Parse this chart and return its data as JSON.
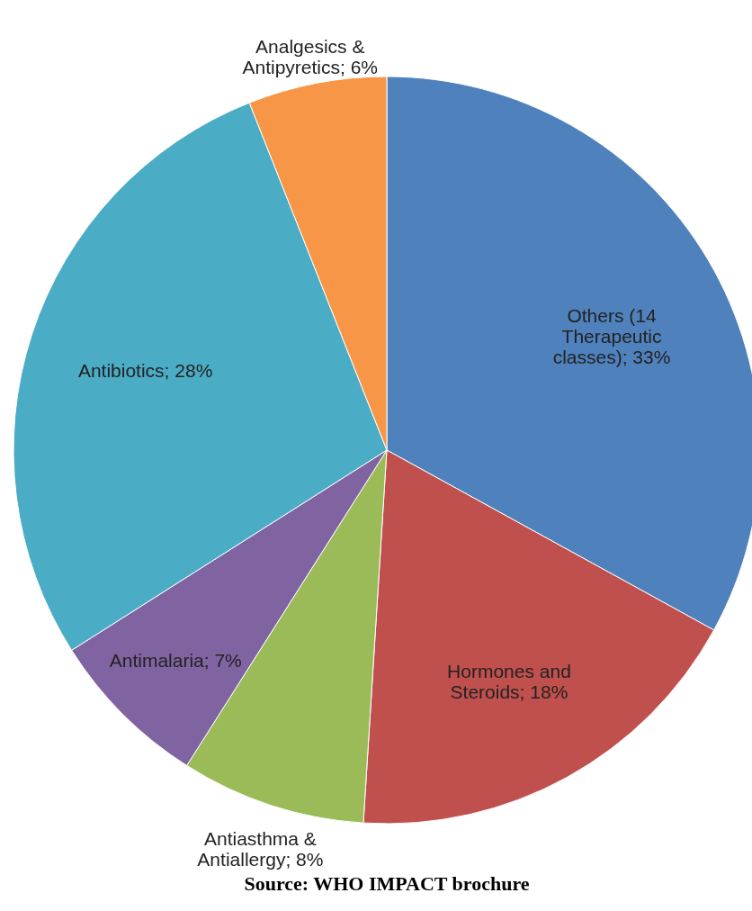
{
  "chart_data": {
    "type": "pie",
    "categories": [
      "Others (14 Therapeutic classes)",
      "Hormones and Steroids",
      "Antiasthma & Antiallergy",
      "Antimalaria",
      "Antibiotics",
      "Analgesics & Antipyretics"
    ],
    "values": [
      33,
      18,
      8,
      7,
      28,
      6
    ],
    "colors": [
      "#4f81bd",
      "#c0504d",
      "#9bbb59",
      "#8064a2",
      "#4bacc6",
      "#f79646"
    ],
    "value_labels": [
      "33%",
      "18%",
      "8%",
      "7%",
      "28%",
      "6%"
    ],
    "annotations": [
      "Source: WHO IMPACT brochure"
    ]
  }
}
